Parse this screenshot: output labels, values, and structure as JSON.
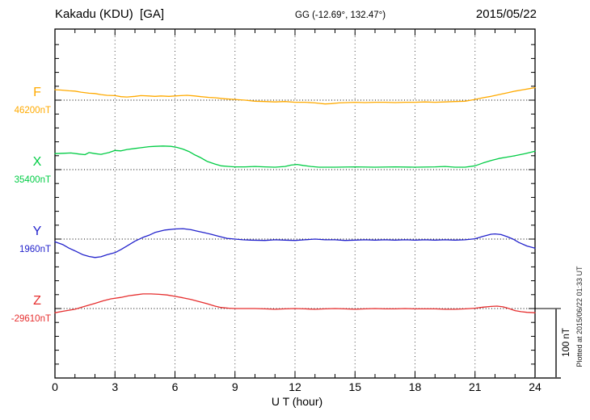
{
  "chart_data": {
    "type": "line",
    "title": "Kakadu (KDU)  [GA]",
    "coords_label": "GG (-12.69°, 132.47°)",
    "date": "2015/05/22",
    "xlabel": "U T (hour)",
    "x_range_hours": [
      0,
      24
    ],
    "x_ticks": [
      0,
      3,
      6,
      9,
      12,
      15,
      18,
      21,
      24
    ],
    "grid": "dotted vertical lines every 3 h; dotted horizontal baseline for each trace",
    "legend_position": "left margin, one colored label per trace",
    "y_minor_tick_spacing_nT": 20,
    "scale_bar": {
      "label": "100 nT",
      "span_nT": 100
    },
    "plotted_at": "Plotted at 2015/06/22 01:33 UT",
    "series": [
      {
        "name": "F",
        "baseline_label": "46200nT",
        "baseline_nT": 46200,
        "color": "#FFAA00",
        "offsets_nT": [
          [
            0,
            15
          ],
          [
            0.3,
            14.5
          ],
          [
            0.7,
            13.5
          ],
          [
            1,
            13
          ],
          [
            1.3,
            11.5
          ],
          [
            1.7,
            10
          ],
          [
            2,
            9.5
          ],
          [
            2.3,
            8
          ],
          [
            2.6,
            7
          ],
          [
            3,
            6.5
          ],
          [
            3.3,
            5
          ],
          [
            3.6,
            4.5
          ],
          [
            4,
            5.5
          ],
          [
            4.3,
            6.5
          ],
          [
            4.7,
            6
          ],
          [
            5,
            5.5
          ],
          [
            5.3,
            6
          ],
          [
            5.7,
            5.5
          ],
          [
            6,
            6
          ],
          [
            6.3,
            6.5
          ],
          [
            6.6,
            7
          ],
          [
            7,
            6
          ],
          [
            7.3,
            5
          ],
          [
            7.7,
            4
          ],
          [
            8,
            3.5
          ],
          [
            8.5,
            2
          ],
          [
            9,
            1
          ],
          [
            9.5,
            0
          ],
          [
            10,
            -1.5
          ],
          [
            10.5,
            -2
          ],
          [
            11,
            -2.5
          ],
          [
            11.5,
            -2
          ],
          [
            12,
            -3
          ],
          [
            12.5,
            -3
          ],
          [
            13,
            -4
          ],
          [
            13.5,
            -5.5
          ],
          [
            13.8,
            -5
          ],
          [
            14.2,
            -4
          ],
          [
            14.6,
            -3.5
          ],
          [
            15,
            -3
          ],
          [
            15.5,
            -3.5
          ],
          [
            16,
            -3
          ],
          [
            16.5,
            -3
          ],
          [
            17,
            -3.5
          ],
          [
            17.5,
            -3
          ],
          [
            18,
            -3
          ],
          [
            18.5,
            -2.5
          ],
          [
            19,
            -3
          ],
          [
            19.5,
            -2.5
          ],
          [
            20,
            -2
          ],
          [
            20.5,
            -1.5
          ],
          [
            21,
            1
          ],
          [
            21.4,
            3.5
          ],
          [
            21.8,
            5.5
          ],
          [
            22.2,
            8
          ],
          [
            22.6,
            10.5
          ],
          [
            23,
            13
          ],
          [
            23.4,
            15
          ],
          [
            23.7,
            16.5
          ],
          [
            24,
            18
          ]
        ]
      },
      {
        "name": "X",
        "baseline_label": "35400nT",
        "baseline_nT": 35400,
        "color": "#00CC44",
        "offsets_nT": [
          [
            0,
            23
          ],
          [
            0.4,
            23.5
          ],
          [
            0.8,
            24
          ],
          [
            1.2,
            22.5
          ],
          [
            1.5,
            21.5
          ],
          [
            1.7,
            24.5
          ],
          [
            2,
            23
          ],
          [
            2.3,
            22
          ],
          [
            2.7,
            24.5
          ],
          [
            3,
            27.5
          ],
          [
            3.3,
            27
          ],
          [
            3.6,
            29
          ],
          [
            4,
            30.5
          ],
          [
            4.3,
            31.5
          ],
          [
            4.7,
            33
          ],
          [
            5,
            33.5
          ],
          [
            5.4,
            34
          ],
          [
            5.8,
            33.5
          ],
          [
            6.1,
            32
          ],
          [
            6.4,
            29.5
          ],
          [
            6.7,
            26
          ],
          [
            7,
            21
          ],
          [
            7.3,
            17
          ],
          [
            7.6,
            12
          ],
          [
            8,
            8
          ],
          [
            8.3,
            5.5
          ],
          [
            8.7,
            4.5
          ],
          [
            9,
            4
          ],
          [
            9.5,
            4
          ],
          [
            10,
            4.5
          ],
          [
            10.5,
            4
          ],
          [
            11,
            3.5
          ],
          [
            11.5,
            4.5
          ],
          [
            11.8,
            6.5
          ],
          [
            12.1,
            7.5
          ],
          [
            12.4,
            6
          ],
          [
            12.8,
            4.5
          ],
          [
            13.2,
            3.5
          ],
          [
            14,
            3.5
          ],
          [
            15,
            4
          ],
          [
            16,
            3.5
          ],
          [
            17,
            4
          ],
          [
            18,
            3.5
          ],
          [
            19,
            4
          ],
          [
            19.5,
            4.5
          ],
          [
            20,
            3.5
          ],
          [
            20.5,
            3.5
          ],
          [
            21,
            5.5
          ],
          [
            21.4,
            9.5
          ],
          [
            21.8,
            13
          ],
          [
            22.2,
            16
          ],
          [
            22.6,
            18
          ],
          [
            23,
            20
          ],
          [
            23.5,
            23
          ],
          [
            24,
            26.5
          ]
        ]
      },
      {
        "name": "Y",
        "baseline_label": "1960nT",
        "baseline_nT": 1960,
        "color": "#2222CC",
        "offsets_nT": [
          [
            0,
            -4
          ],
          [
            0.4,
            -8
          ],
          [
            0.7,
            -13
          ],
          [
            1,
            -17
          ],
          [
            1.4,
            -22.5
          ],
          [
            1.7,
            -25
          ],
          [
            2,
            -26.5
          ],
          [
            2.3,
            -25.5
          ],
          [
            2.6,
            -22.5
          ],
          [
            3,
            -19.5
          ],
          [
            3.3,
            -15
          ],
          [
            3.6,
            -10
          ],
          [
            4,
            -3
          ],
          [
            4.4,
            2.5
          ],
          [
            4.7,
            5.5
          ],
          [
            5,
            9.5
          ],
          [
            5.5,
            13
          ],
          [
            6,
            14.5
          ],
          [
            6.4,
            15
          ],
          [
            6.8,
            13.5
          ],
          [
            7.1,
            11.5
          ],
          [
            7.5,
            9
          ],
          [
            7.8,
            7
          ],
          [
            8.2,
            4
          ],
          [
            8.6,
            1
          ],
          [
            9,
            0
          ],
          [
            9.4,
            -1
          ],
          [
            9.8,
            -1.5
          ],
          [
            10.5,
            -2
          ],
          [
            11,
            -1
          ],
          [
            11.5,
            -1.5
          ],
          [
            12,
            -2
          ],
          [
            12.5,
            -1
          ],
          [
            13,
            0
          ],
          [
            13.5,
            -1
          ],
          [
            14,
            -1
          ],
          [
            14.5,
            -2
          ],
          [
            15,
            -1.5
          ],
          [
            15.5,
            -1
          ],
          [
            16,
            -1.5
          ],
          [
            16.5,
            -1
          ],
          [
            17,
            -1.5
          ],
          [
            17.5,
            -1
          ],
          [
            18,
            -1.5
          ],
          [
            18.5,
            -1
          ],
          [
            19,
            -1.5
          ],
          [
            19.5,
            -1
          ],
          [
            20,
            -1.5
          ],
          [
            20.5,
            -1
          ],
          [
            21,
            0.5
          ],
          [
            21.4,
            4
          ],
          [
            21.8,
            7
          ],
          [
            22,
            7.5
          ],
          [
            22.3,
            6.5
          ],
          [
            22.6,
            3.5
          ],
          [
            22.9,
            0
          ],
          [
            23.2,
            -5
          ],
          [
            23.6,
            -10
          ],
          [
            24,
            -13
          ]
        ]
      },
      {
        "name": "Z",
        "baseline_label": "-29610nT",
        "baseline_nT": -29610,
        "color": "#E62E2E",
        "offsets_nT": [
          [
            0,
            -6
          ],
          [
            0.4,
            -4
          ],
          [
            0.7,
            -2.5
          ],
          [
            1,
            -1
          ],
          [
            1.4,
            2.5
          ],
          [
            2,
            7.5
          ],
          [
            2.4,
            11
          ],
          [
            2.8,
            14
          ],
          [
            3.3,
            16
          ],
          [
            3.7,
            18.5
          ],
          [
            4,
            19.5
          ],
          [
            4.4,
            21
          ],
          [
            4.8,
            21
          ],
          [
            5.2,
            20.5
          ],
          [
            5.6,
            19.5
          ],
          [
            6,
            17.5
          ],
          [
            6.4,
            15.5
          ],
          [
            6.8,
            13
          ],
          [
            7.2,
            10
          ],
          [
            7.6,
            7
          ],
          [
            8,
            3.5
          ],
          [
            8.3,
            1.5
          ],
          [
            8.7,
            0.5
          ],
          [
            9,
            0
          ],
          [
            9.5,
            0
          ],
          [
            10,
            0
          ],
          [
            10.5,
            -0.5
          ],
          [
            11,
            -1
          ],
          [
            11.5,
            -0.5
          ],
          [
            12,
            0
          ],
          [
            12.5,
            -0.5
          ],
          [
            13,
            -1
          ],
          [
            13.5,
            -0.5
          ],
          [
            14,
            0
          ],
          [
            14.5,
            -0.5
          ],
          [
            15,
            -1
          ],
          [
            15.5,
            -0.5
          ],
          [
            16,
            0
          ],
          [
            16.5,
            -0.5
          ],
          [
            17,
            -0.5
          ],
          [
            17.5,
            0
          ],
          [
            18,
            -0.5
          ],
          [
            18.5,
            -0.5
          ],
          [
            19,
            -0.5
          ],
          [
            19.5,
            -1
          ],
          [
            20,
            -1
          ],
          [
            20.5,
            -0.5
          ],
          [
            21,
            0.5
          ],
          [
            21.4,
            2
          ],
          [
            21.8,
            3
          ],
          [
            22.1,
            3.5
          ],
          [
            22.4,
            2.5
          ],
          [
            22.7,
            0
          ],
          [
            23,
            -3
          ],
          [
            23.3,
            -4.5
          ],
          [
            23.6,
            -5.5
          ],
          [
            24,
            -6
          ]
        ]
      }
    ]
  }
}
